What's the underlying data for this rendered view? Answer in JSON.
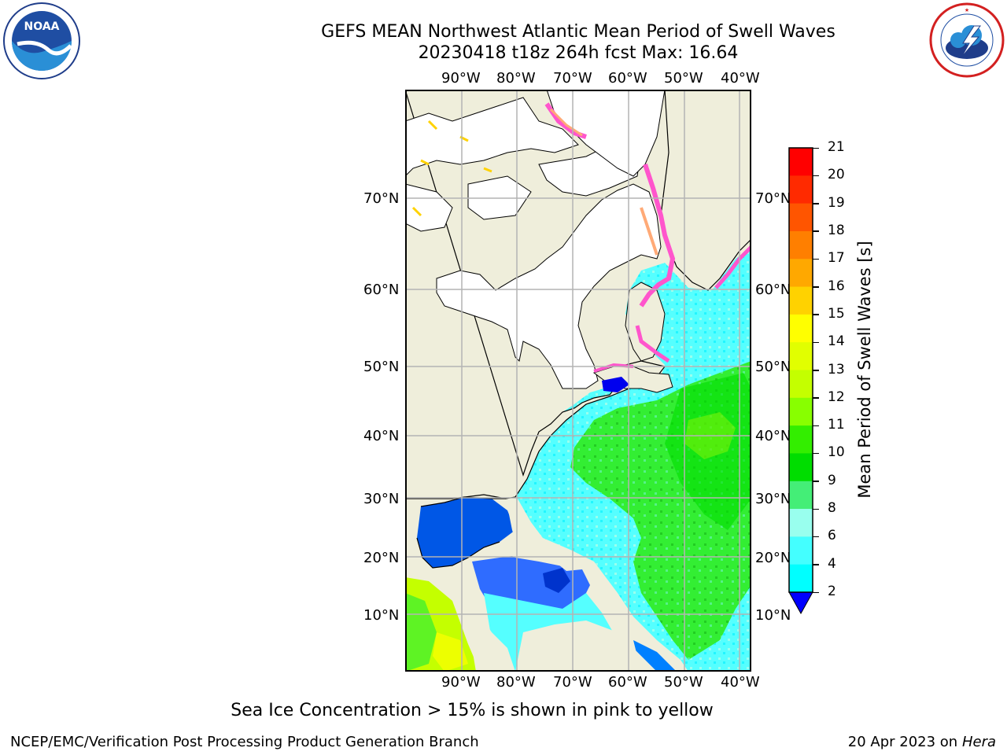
{
  "header": {
    "title": "GEFS MEAN Northwest Atlantic Mean Period of Swell Waves",
    "subtitle": "20230418 t18z 264h fcst   Max: 16.64"
  },
  "logos": {
    "noaa_text": "NOAA",
    "noaa_ring_text": "NATIONAL OCEANIC AND ATMOSPHERIC ADMINISTRATION · U.S. DEPARTMENT OF COMMERCE",
    "nws_ring_text": "NATIONAL WEATHER SERVICE"
  },
  "map": {
    "lon_labels": [
      "90°W",
      "80°W",
      "70°W",
      "60°W",
      "50°W",
      "40°W"
    ],
    "lat_labels": [
      "70°N",
      "60°N",
      "50°N",
      "40°N",
      "30°N",
      "20°N",
      "10°N"
    ],
    "colors": {
      "land": "#efeedb",
      "ice_free_land": "#ffffff",
      "grid": "#b4b4b4"
    }
  },
  "colorbar": {
    "label": "Mean Period of Swell Waves [s]",
    "ticks": [
      "21",
      "20",
      "19",
      "18",
      "17",
      "16",
      "15",
      "14",
      "13",
      "12",
      "11",
      "10",
      "9",
      "8",
      "6",
      "4",
      "2"
    ],
    "colors": [
      "#ff0000",
      "#ff2a00",
      "#ff5500",
      "#ff7f00",
      "#ffa800",
      "#ffd200",
      "#ffff00",
      "#e1ff00",
      "#c4ff00",
      "#88ff00",
      "#33ee00",
      "#00dd00",
      "#44ee77",
      "#99ffee",
      "#44ffff",
      "#00ffff",
      "#0080ff"
    ],
    "under_color": "#0000ff"
  },
  "footer": {
    "note": "Sea Ice Concentration > 15% is shown in pink to yellow",
    "credit": "NCEP/EMC/Verification Post Processing Product Generation Branch",
    "date": "20 Apr 2023 on ",
    "machine": "Hera"
  }
}
